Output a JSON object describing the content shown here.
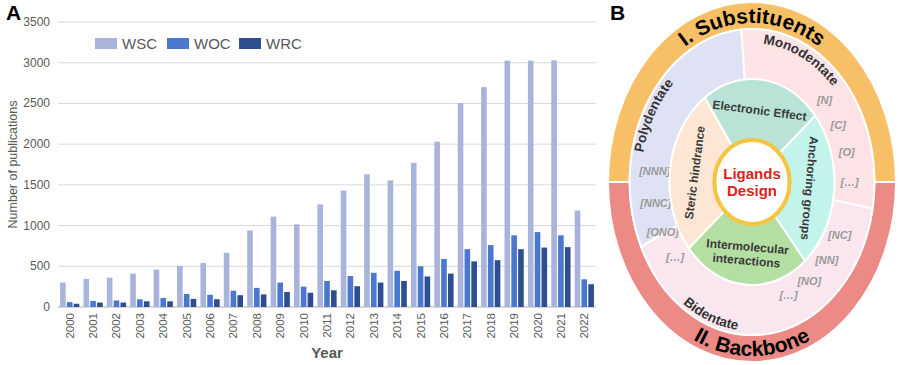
{
  "panel_labels": [
    "A",
    "B"
  ],
  "chart_data": {
    "type": "bar",
    "x_label": "Year",
    "y_label": "Number of publications",
    "categories": [
      "2000",
      "2001",
      "2002",
      "2003",
      "2004",
      "2005",
      "2006",
      "2007",
      "2008",
      "2009",
      "2010",
      "2011",
      "2012",
      "2013",
      "2014",
      "2015",
      "2016",
      "2017",
      "2018",
      "2019",
      "2020",
      "2021",
      "2022"
    ],
    "series": [
      {
        "name": "WSC",
        "color": "#a9b4dc",
        "values": [
          300,
          345,
          360,
          410,
          460,
          505,
          540,
          665,
          940,
          1110,
          1015,
          1260,
          1430,
          1630,
          1555,
          1770,
          2030,
          2505,
          2700,
          3025,
          3025,
          3030,
          1185
        ]
      },
      {
        "name": "WOC",
        "color": "#4a78cf",
        "values": [
          60,
          75,
          80,
          95,
          110,
          160,
          150,
          200,
          235,
          300,
          250,
          320,
          380,
          420,
          445,
          500,
          590,
          710,
          760,
          880,
          920,
          880,
          340
        ]
      },
      {
        "name": "WRC",
        "color": "#2e4e8f",
        "values": [
          40,
          55,
          55,
          70,
          70,
          100,
          95,
          145,
          155,
          185,
          175,
          205,
          255,
          300,
          320,
          375,
          410,
          560,
          575,
          710,
          730,
          735,
          280
        ]
      }
    ],
    "ylim": [
      0,
      3500
    ],
    "yticks": [
      0,
      500,
      1000,
      1500,
      2000,
      2500,
      3000,
      3500
    ],
    "grid": true,
    "legend": "upper left"
  },
  "diagram": {
    "outer_ring": [
      {
        "label": "I. Substituents"
      },
      {
        "label": "II. Backbone"
      }
    ],
    "middle_ring": [
      {
        "label": "Polydentate",
        "items": [
          "[NNN]",
          "[NNC]",
          "[ONO]",
          "[…]"
        ]
      },
      {
        "label": "Monodentate",
        "items": [
          "[N]",
          "[C]",
          "[O]",
          "[…]"
        ]
      },
      {
        "label": "Bidentate",
        "items": [
          "[NC]",
          "[NN]",
          "[NO]",
          "[…]"
        ]
      }
    ],
    "inner_ring": [
      {
        "label": "Electronic Effect"
      },
      {
        "label": "Anchoring groups"
      },
      {
        "label": "Intermolecular interactions"
      },
      {
        "label": "Steric hindrance"
      }
    ],
    "center": {
      "label": "Ligands Design"
    }
  }
}
